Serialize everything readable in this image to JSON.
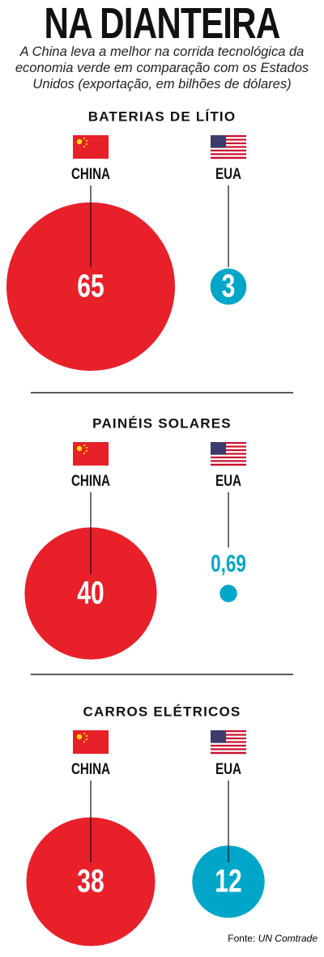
{
  "title": "NA DIANTEIRA",
  "subtitle": "A China leva a melhor na corrida tecnológica da economia verde em comparação com os Estados Unidos (exportação, em bilhões de dólares)",
  "source": {
    "label": "Fonte:",
    "name": "UN Comtrade"
  },
  "chart_data": [
    {
      "type": "bubble",
      "title": "BATERIAS DE LÍTIO",
      "categories": [
        "CHINA",
        "EUA"
      ],
      "values": [
        65,
        3
      ],
      "colors": [
        "#e8202a",
        "#00a6c8"
      ]
    },
    {
      "type": "bubble",
      "title": "PAINÉIS SOLARES",
      "categories": [
        "CHINA",
        "EUA"
      ],
      "values": [
        40,
        0.69
      ],
      "value_labels": [
        "40",
        "0,69"
      ],
      "colors": [
        "#e8202a",
        "#00a6c8"
      ]
    },
    {
      "type": "bubble",
      "title": "CARROS ELÉTRICOS",
      "categories": [
        "CHINA",
        "EUA"
      ],
      "values": [
        38,
        12
      ],
      "colors": [
        "#e8202a",
        "#00a6c8"
      ]
    }
  ]
}
